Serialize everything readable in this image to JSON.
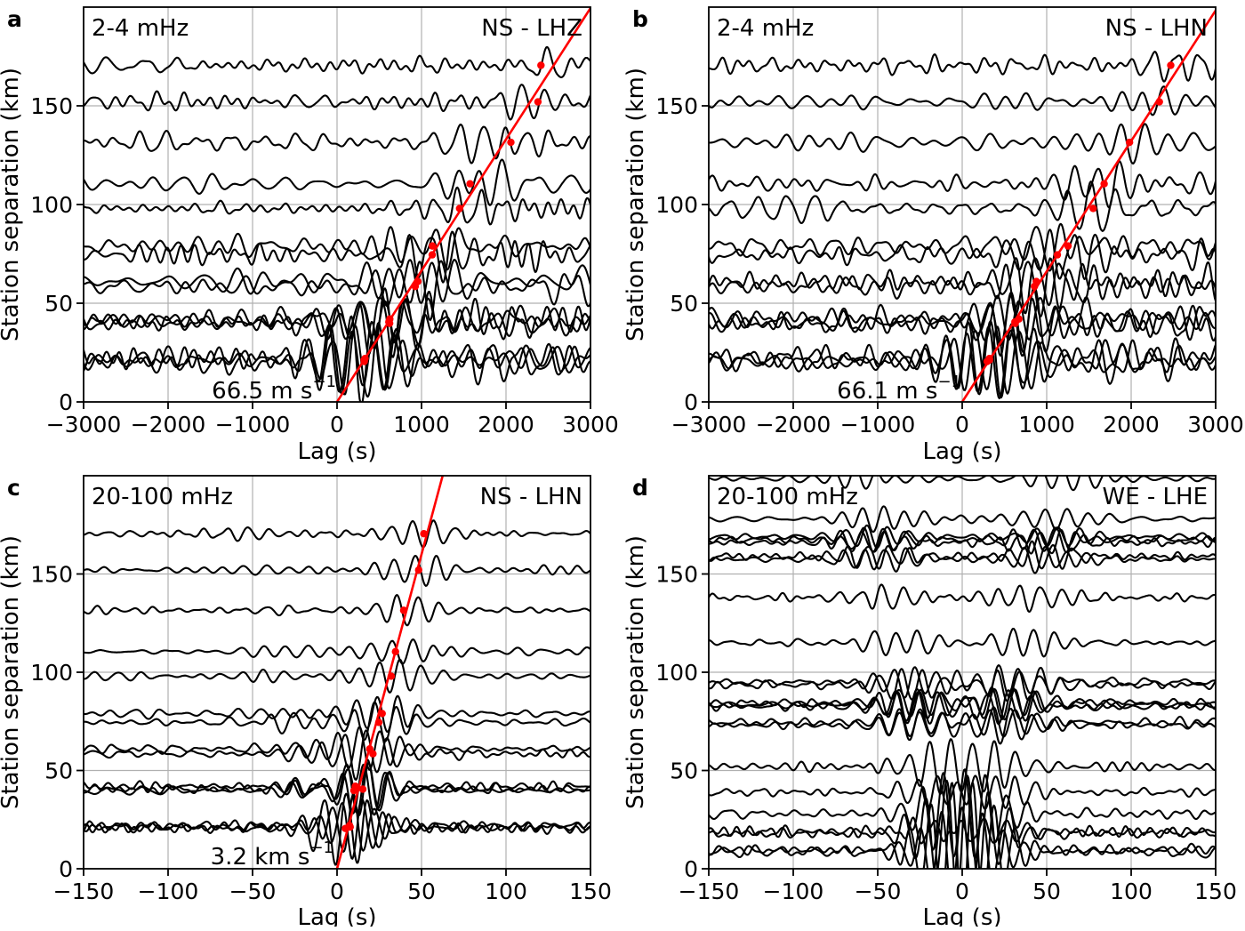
{
  "figure": {
    "background": "#ffffff",
    "trace_color": "#000000",
    "fit_color": "#ff0000",
    "grid_color": "#b0b0b0",
    "frame_color": "#000000"
  },
  "chart_data": [
    {
      "id": "a",
      "type": "line",
      "panel_label": "a",
      "band_label": "2-4 mHz",
      "component_label": "NS - LHZ",
      "velocity_label": "66.5 m s",
      "velocity_sup": "−1",
      "xlabel": "Lag (s)",
      "ylabel": "Station separation (km)",
      "xlim": [
        -3000,
        3000
      ],
      "ylim": [
        0,
        200
      ],
      "xticks": [
        -3000,
        -2000,
        -1000,
        0,
        1000,
        2000,
        3000
      ],
      "xtick_labels": [
        "−3000",
        "−2000",
        "−1000",
        "0",
        "1000",
        "2000",
        "3000"
      ],
      "yticks": [
        0,
        50,
        100,
        150
      ],
      "ytick_labels": [
        "0",
        "50",
        "100",
        "150"
      ],
      "moveout_velocity_km_s": 0.0665,
      "fit_line": true,
      "fit_dots": true,
      "station_separations_km": [
        170.5,
        152,
        131.5,
        110.5,
        98,
        79,
        74.5,
        61,
        58.5,
        42,
        40.5,
        39.8,
        22,
        21.2,
        20.5
      ],
      "wave": {
        "period_s": 265,
        "noise_amp_km": 3.4,
        "signal_amp_km": 13.5,
        "signal_sigma_s": 420,
        "decay_exp": 0.5,
        "neg_side_ratio": 0.2,
        "coda_boost": 0.55,
        "two_sided": false
      }
    },
    {
      "id": "b",
      "type": "line",
      "panel_label": "b",
      "band_label": "2-4 mHz",
      "component_label": "NS - LHN",
      "velocity_label": "66.1 m s",
      "velocity_sup": "−1",
      "xlabel": "Lag (s)",
      "ylabel": "Station separation (km)",
      "xlim": [
        -3000,
        3000
      ],
      "ylim": [
        0,
        200
      ],
      "xticks": [
        -3000,
        -2000,
        -1000,
        0,
        1000,
        2000,
        3000
      ],
      "xtick_labels": [
        "−3000",
        "−2000",
        "−1000",
        "0",
        "1000",
        "2000",
        "3000"
      ],
      "yticks": [
        0,
        50,
        100,
        150
      ],
      "ytick_labels": [
        "0",
        "50",
        "100",
        "150"
      ],
      "moveout_velocity_km_s": 0.0661,
      "fit_line": true,
      "fit_dots": true,
      "station_separations_km": [
        170.5,
        152,
        131.5,
        110.5,
        98,
        79,
        74.5,
        61,
        58.5,
        42,
        40.5,
        39.8,
        22,
        21.2,
        20.5
      ],
      "wave": {
        "period_s": 265,
        "noise_amp_km": 3.4,
        "signal_amp_km": 13.5,
        "signal_sigma_s": 420,
        "decay_exp": 0.5,
        "neg_side_ratio": 0.2,
        "coda_boost": 0.55,
        "two_sided": false
      }
    },
    {
      "id": "c",
      "type": "line",
      "panel_label": "c",
      "band_label": "20-100 mHz",
      "component_label": "NS - LHN",
      "velocity_label": "3.2 km s",
      "velocity_sup": "−1",
      "xlabel": "Lag (s)",
      "ylabel": "Station separation (km)",
      "xlim": [
        -150,
        150
      ],
      "ylim": [
        0,
        200
      ],
      "xticks": [
        -150,
        -100,
        -50,
        0,
        50,
        100,
        150
      ],
      "xtick_labels": [
        "−150",
        "−100",
        "−50",
        "0",
        "50",
        "100",
        "150"
      ],
      "yticks": [
        0,
        50,
        100,
        150
      ],
      "ytick_labels": [
        "0",
        "50",
        "100",
        "150"
      ],
      "moveout_velocity_km_s": 3.2,
      "fit_line": true,
      "fit_dots": true,
      "station_separations_km": [
        170.5,
        152,
        131.5,
        110.5,
        98,
        79,
        74.5,
        61,
        58.5,
        42,
        40.5,
        39.8,
        22,
        21.2,
        20.5
      ],
      "wave": {
        "period_s": 12.5,
        "noise_amp_km": 1.5,
        "signal_amp_km": 14,
        "signal_sigma_s": 16,
        "decay_exp": 0.5,
        "neg_side_ratio": 0.35,
        "coda_boost": 0,
        "two_sided": false
      }
    },
    {
      "id": "d",
      "type": "line",
      "panel_label": "d",
      "band_label": "20-100 mHz",
      "component_label": "WE - LHE",
      "xlabel": "Lag (s)",
      "ylabel": "Station separation (km)",
      "xlim": [
        -150,
        150
      ],
      "ylim": [
        0,
        200
      ],
      "xticks": [
        -150,
        -100,
        -50,
        0,
        50,
        100,
        150
      ],
      "xtick_labels": [
        "−150",
        "−100",
        "−50",
        "0",
        "50",
        "100",
        "150"
      ],
      "yticks": [
        0,
        50,
        100,
        150
      ],
      "ytick_labels": [
        "0",
        "50",
        "100",
        "150"
      ],
      "moveout_velocity_km_s": 3.2,
      "fit_line": false,
      "fit_dots": false,
      "station_separations_km": [
        198.5,
        178,
        169,
        167.5,
        166,
        159,
        157.5,
        138,
        115,
        95,
        93.5,
        84.5,
        83.5,
        82.5,
        74.5,
        73,
        52,
        39,
        28,
        19,
        18,
        9.5,
        8.7
      ],
      "wave": {
        "period_s": 12.5,
        "noise_amp_km": 1.5,
        "signal_amp_km": 11,
        "signal_sigma_s": 20,
        "decay_exp": 0.45,
        "neg_side_ratio": 0.95,
        "coda_boost": 0,
        "two_sided": true
      }
    }
  ]
}
